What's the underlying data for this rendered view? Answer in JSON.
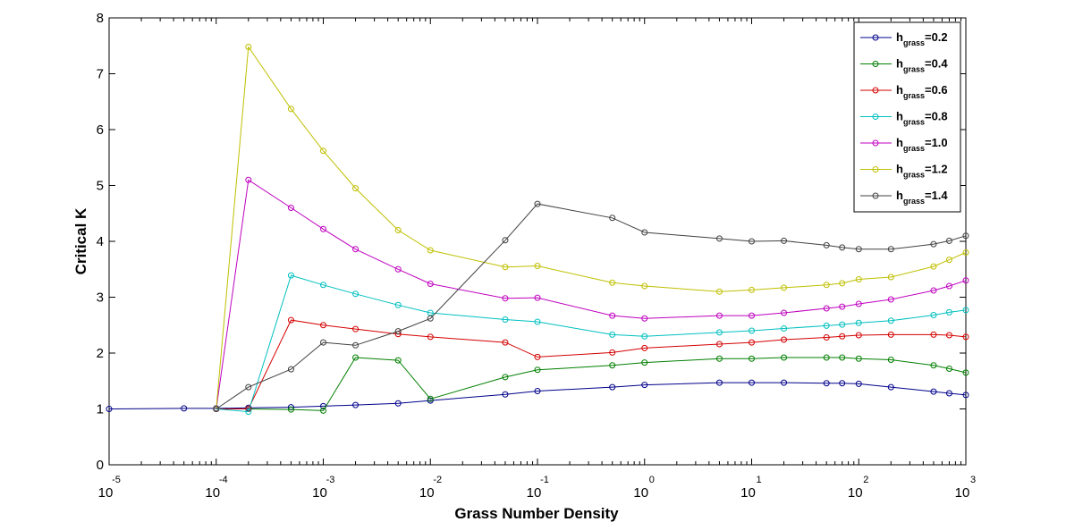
{
  "chart_data": {
    "type": "line",
    "xlabel": "Grass Number Density",
    "ylabel": "Critical K",
    "x_scale": "log",
    "xlim": [
      1e-05,
      1000
    ],
    "ylim": [
      0,
      8
    ],
    "x_ticks": [
      {
        "base": "10",
        "exp": "-5"
      },
      {
        "base": "10",
        "exp": "-4"
      },
      {
        "base": "10",
        "exp": "-3"
      },
      {
        "base": "10",
        "exp": "-2"
      },
      {
        "base": "10",
        "exp": "-1"
      },
      {
        "base": "10",
        "exp": "0"
      },
      {
        "base": "10",
        "exp": "1"
      },
      {
        "base": "10",
        "exp": "2"
      },
      {
        "base": "10",
        "exp": "3"
      }
    ],
    "y_ticks": [
      "0",
      "1",
      "2",
      "3",
      "4",
      "5",
      "6",
      "7",
      "8"
    ],
    "legend_position": "top-right",
    "grid": false,
    "series": [
      {
        "name": "h",
        "sub": "grass",
        "value_label": "=0.2",
        "color": "#00008b",
        "x": [
          1e-05,
          5e-05,
          0.0001,
          0.0002,
          0.0005,
          0.001,
          0.002,
          0.005,
          0.01,
          0.05,
          0.1,
          0.5,
          1,
          5,
          10,
          20,
          50,
          70,
          100,
          200,
          500,
          700,
          1000
        ],
        "y": [
          1.0,
          1.01,
          1.01,
          1.02,
          1.03,
          1.05,
          1.07,
          1.1,
          1.15,
          1.26,
          1.32,
          1.39,
          1.43,
          1.47,
          1.47,
          1.47,
          1.46,
          1.46,
          1.45,
          1.39,
          1.31,
          1.28,
          1.25
        ]
      },
      {
        "name": "h",
        "sub": "grass",
        "value_label": "=0.4",
        "color": "#007f00",
        "x": [
          0.0001,
          0.0002,
          0.0005,
          0.001,
          0.002,
          0.005,
          0.01,
          0.05,
          0.1,
          0.5,
          1,
          5,
          10,
          20,
          50,
          70,
          100,
          200,
          500,
          700,
          1000
        ],
        "y": [
          1.0,
          1.0,
          0.99,
          0.97,
          1.92,
          1.87,
          1.18,
          1.57,
          1.7,
          1.78,
          1.83,
          1.9,
          1.9,
          1.92,
          1.92,
          1.92,
          1.9,
          1.88,
          1.78,
          1.72,
          1.65
        ]
      },
      {
        "name": "h",
        "sub": "grass",
        "value_label": "=0.6",
        "color": "#d40000",
        "x": [
          0.0001,
          0.0002,
          0.0005,
          0.001,
          0.002,
          0.005,
          0.01,
          0.05,
          0.1,
          0.5,
          1,
          5,
          10,
          20,
          50,
          70,
          100,
          200,
          500,
          700,
          1000
        ],
        "y": [
          1.0,
          1.0,
          2.59,
          2.5,
          2.43,
          2.34,
          2.29,
          2.19,
          1.93,
          2.01,
          2.09,
          2.16,
          2.19,
          2.24,
          2.28,
          2.3,
          2.32,
          2.33,
          2.33,
          2.32,
          2.29
        ]
      },
      {
        "name": "h",
        "sub": "grass",
        "value_label": "=0.8",
        "color": "#00bfbf",
        "x": [
          0.0001,
          0.0002,
          0.0005,
          0.001,
          0.002,
          0.005,
          0.01,
          0.05,
          0.1,
          0.5,
          1,
          5,
          10,
          20,
          50,
          70,
          100,
          200,
          500,
          700,
          1000
        ],
        "y": [
          1.0,
          0.95,
          3.39,
          3.22,
          3.06,
          2.86,
          2.72,
          2.6,
          2.56,
          2.33,
          2.3,
          2.37,
          2.4,
          2.44,
          2.49,
          2.51,
          2.54,
          2.58,
          2.68,
          2.73,
          2.77
        ]
      },
      {
        "name": "h",
        "sub": "grass",
        "value_label": "=1.0",
        "color": "#bf00bf",
        "x": [
          0.0001,
          0.0002,
          0.0005,
          0.001,
          0.002,
          0.005,
          0.01,
          0.05,
          0.1,
          0.5,
          1,
          5,
          10,
          20,
          50,
          70,
          100,
          200,
          500,
          700,
          1000
        ],
        "y": [
          1.0,
          5.1,
          4.6,
          4.22,
          3.86,
          3.5,
          3.24,
          2.98,
          2.99,
          2.67,
          2.62,
          2.67,
          2.67,
          2.72,
          2.8,
          2.83,
          2.88,
          2.96,
          3.12,
          3.2,
          3.3
        ]
      },
      {
        "name": "h",
        "sub": "grass",
        "value_label": "=1.2",
        "color": "#bfbf00",
        "x": [
          0.0001,
          0.0002,
          0.0005,
          0.001,
          0.002,
          0.005,
          0.01,
          0.05,
          0.1,
          0.5,
          1,
          5,
          10,
          20,
          50,
          70,
          100,
          200,
          500,
          700,
          1000
        ],
        "y": [
          1.0,
          7.48,
          6.37,
          5.62,
          4.95,
          4.2,
          3.84,
          3.54,
          3.56,
          3.26,
          3.2,
          3.1,
          3.13,
          3.17,
          3.22,
          3.25,
          3.32,
          3.36,
          3.55,
          3.67,
          3.8
        ]
      },
      {
        "name": "h",
        "sub": "grass",
        "value_label": "=1.4",
        "color": "#404040",
        "x": [
          0.0001,
          0.0002,
          0.0005,
          0.001,
          0.002,
          0.005,
          0.01,
          0.05,
          0.1,
          0.5,
          1,
          5,
          10,
          20,
          50,
          70,
          100,
          200,
          500,
          700,
          1000
        ],
        "y": [
          1.0,
          1.39,
          1.71,
          2.19,
          2.14,
          2.39,
          2.62,
          4.02,
          4.67,
          4.42,
          4.16,
          4.05,
          4.0,
          4.01,
          3.93,
          3.89,
          3.86,
          3.86,
          3.95,
          4.01,
          4.1
        ]
      }
    ]
  }
}
